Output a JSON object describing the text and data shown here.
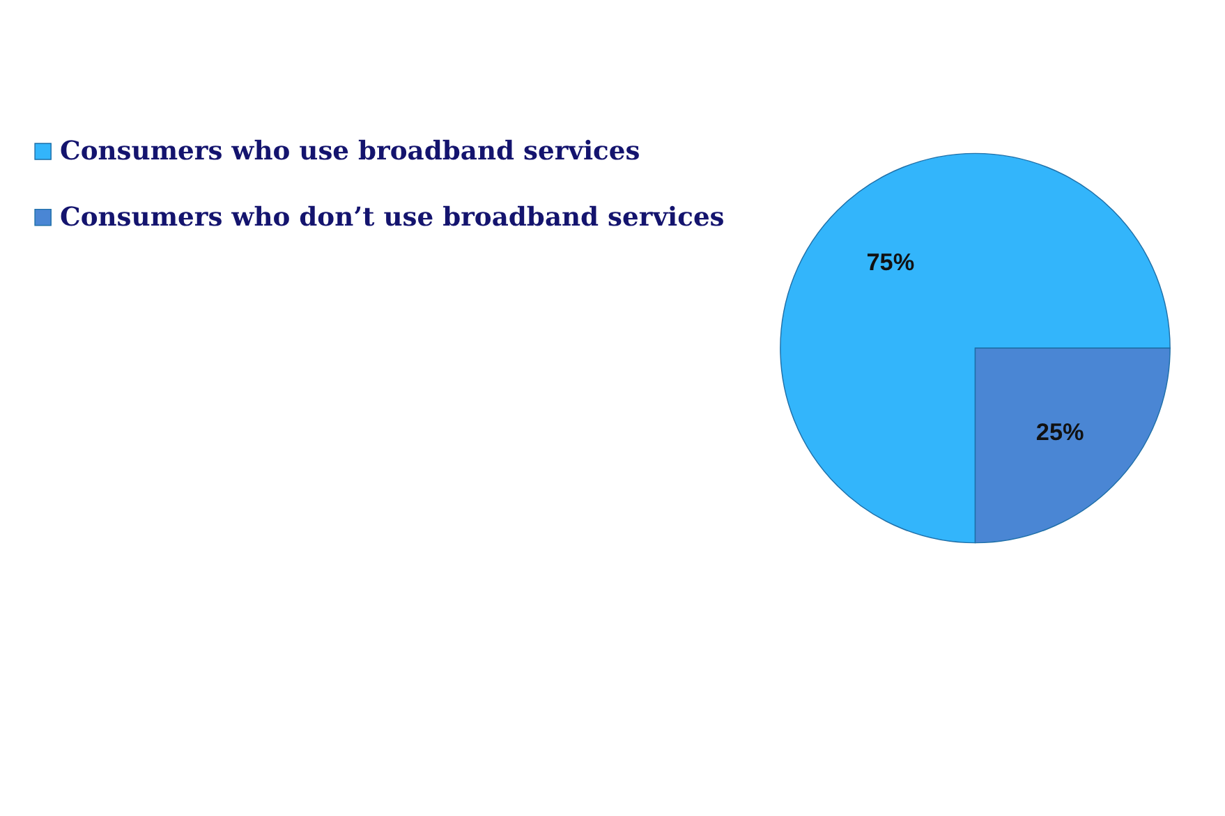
{
  "chart_data": {
    "type": "pie",
    "categories": [
      "Consumers who use broadband services",
      "Consumers who don’t use broadband services"
    ],
    "values": [
      75,
      25
    ],
    "colors": [
      "#33b5fb",
      "#4a86d4"
    ],
    "value_labels": [
      "75%",
      "25%"
    ],
    "legend": "left"
  }
}
